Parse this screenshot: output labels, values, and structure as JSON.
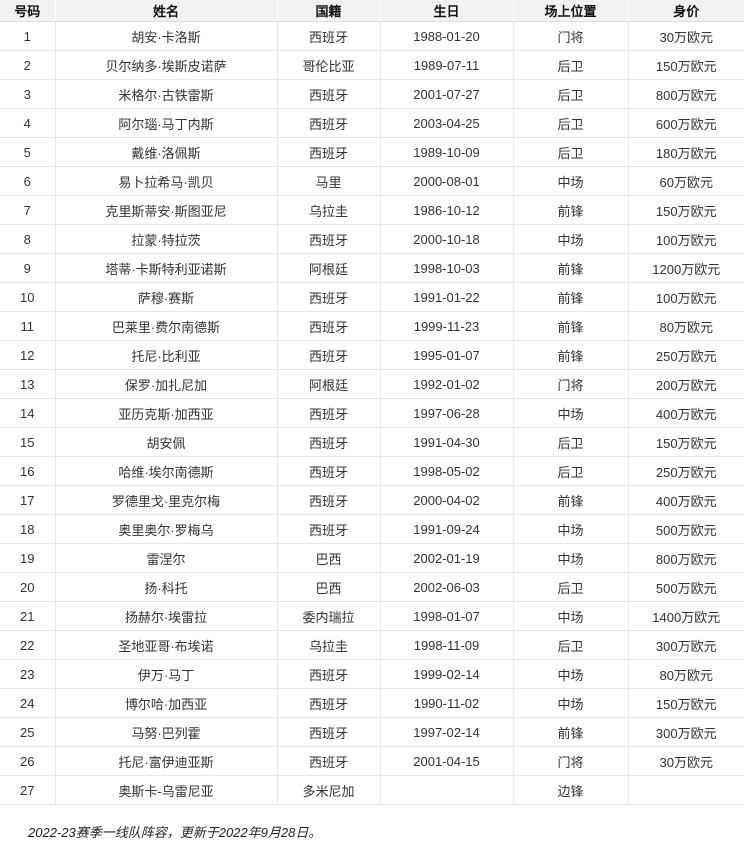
{
  "table": {
    "columns": [
      "号码",
      "姓名",
      "国籍",
      "生日",
      "场上位置",
      "身价"
    ],
    "rows": [
      [
        "1",
        "胡安·卡洛斯",
        "西班牙",
        "1988-01-20",
        "门将",
        "30万欧元"
      ],
      [
        "2",
        "贝尔纳多·埃斯皮诺萨",
        "哥伦比亚",
        "1989-07-11",
        "后卫",
        "150万欧元"
      ],
      [
        "3",
        "米格尔·古铁雷斯",
        "西班牙",
        "2001-07-27",
        "后卫",
        "800万欧元"
      ],
      [
        "4",
        "阿尔瑙·马丁内斯",
        "西班牙",
        "2003-04-25",
        "后卫",
        "600万欧元"
      ],
      [
        "5",
        "戴维·洛佩斯",
        "西班牙",
        "1989-10-09",
        "后卫",
        "180万欧元"
      ],
      [
        "6",
        "易卜拉希马·凯贝",
        "马里",
        "2000-08-01",
        "中场",
        "60万欧元"
      ],
      [
        "7",
        "克里斯蒂安·斯图亚尼",
        "乌拉圭",
        "1986-10-12",
        "前锋",
        "150万欧元"
      ],
      [
        "8",
        "拉蒙·特拉茨",
        "西班牙",
        "2000-10-18",
        "中场",
        "100万欧元"
      ],
      [
        "9",
        "塔蒂·卡斯特利亚诺斯",
        "阿根廷",
        "1998-10-03",
        "前锋",
        "1200万欧元"
      ],
      [
        "10",
        "萨穆·赛斯",
        "西班牙",
        "1991-01-22",
        "前锋",
        "100万欧元"
      ],
      [
        "11",
        "巴莱里·费尔南德斯",
        "西班牙",
        "1999-11-23",
        "前锋",
        "80万欧元"
      ],
      [
        "12",
        "托尼·比利亚",
        "西班牙",
        "1995-01-07",
        "前锋",
        "250万欧元"
      ],
      [
        "13",
        "保罗·加扎尼加",
        "阿根廷",
        "1992-01-02",
        "门将",
        "200万欧元"
      ],
      [
        "14",
        "亚历克斯·加西亚",
        "西班牙",
        "1997-06-28",
        "中场",
        "400万欧元"
      ],
      [
        "15",
        "胡安佩",
        "西班牙",
        "1991-04-30",
        "后卫",
        "150万欧元"
      ],
      [
        "16",
        "哈维·埃尔南德斯",
        "西班牙",
        "1998-05-02",
        "后卫",
        "250万欧元"
      ],
      [
        "17",
        "罗德里戈·里克尔梅",
        "西班牙",
        "2000-04-02",
        "前锋",
        "400万欧元"
      ],
      [
        "18",
        "奥里奥尔·罗梅乌",
        "西班牙",
        "1991-09-24",
        "中场",
        "500万欧元"
      ],
      [
        "19",
        "雷涅尔",
        "巴西",
        "2002-01-19",
        "中场",
        "800万欧元"
      ],
      [
        "20",
        "扬·科托",
        "巴西",
        "2002-06-03",
        "后卫",
        "500万欧元"
      ],
      [
        "21",
        "扬赫尔·埃雷拉",
        "委内瑞拉",
        "1998-01-07",
        "中场",
        "1400万欧元"
      ],
      [
        "22",
        "圣地亚哥·布埃诺",
        "乌拉圭",
        "1998-11-09",
        "后卫",
        "300万欧元"
      ],
      [
        "23",
        "伊万·马丁",
        "西班牙",
        "1999-02-14",
        "中场",
        "80万欧元"
      ],
      [
        "24",
        "博尔哈·加西亚",
        "西班牙",
        "1990-11-02",
        "中场",
        "150万欧元"
      ],
      [
        "25",
        "马努·巴列霍",
        "西班牙",
        "1997-02-14",
        "前锋",
        "300万欧元"
      ],
      [
        "26",
        "托尼·富伊迪亚斯",
        "西班牙",
        "2001-04-15",
        "门将",
        "30万欧元"
      ],
      [
        "27",
        "奥斯卡-乌雷尼亚",
        "多米尼加",
        "",
        "边锋",
        ""
      ]
    ]
  },
  "footer": {
    "note": "2022-23赛季一线队阵容，更新于2022年9月28日。"
  },
  "colors": {
    "header_bg": "#f2f2f2",
    "row_border": "#e8e8e8",
    "header_border": "#dddddd",
    "text": "#333333"
  }
}
